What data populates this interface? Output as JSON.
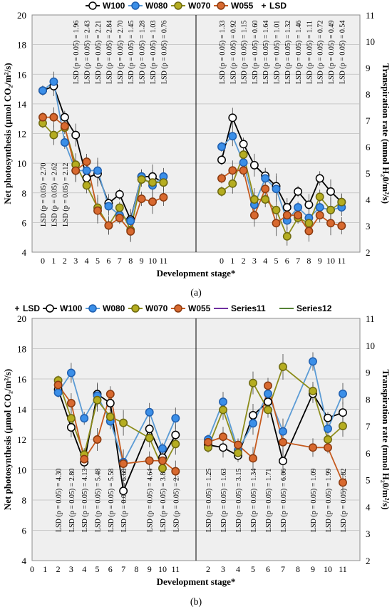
{
  "chart_data": [
    {
      "type": "line",
      "panel": "(a)",
      "legend": [
        "W100",
        "W080",
        "W070",
        "W055",
        "LSD"
      ],
      "xlabel": "Development stage*",
      "ylabel_left": "Net photosynthesis (µmol CO₂/m²/s)",
      "ylabel_right": "Transpiration rate (mmol H₂0/m²/s)",
      "ylim_left": [
        4,
        20
      ],
      "ylim_right": [
        2,
        11
      ],
      "yticks_left": [
        "4",
        "6",
        "8",
        "10",
        "12",
        "14",
        "16",
        "18",
        "20"
      ],
      "yticks_right": [
        "2",
        "3",
        "4",
        "5",
        "6",
        "7",
        "8",
        "9",
        "10",
        "11"
      ],
      "grid": true,
      "colors": {
        "W100": "#ffffff",
        "W080": "#3b8fe8",
        "W070": "#a8a21c",
        "W055": "#d8692f",
        "line_W100": "#000000",
        "line_W080": "#5b9bd5",
        "line_W070": "#8c8c1a",
        "line_W055": "#c55a1e"
      },
      "left": {
        "x": [
          "0",
          "1",
          "2",
          "3",
          "4",
          "5",
          "6",
          "7",
          "8",
          "9",
          "10",
          "11"
        ],
        "series": [
          {
            "name": "W100",
            "values": [
              14.9,
              15.2,
              13.1,
              11.9,
              9.0,
              9.3,
              7.3,
              7.9,
              6.2,
              9.1,
              9.1,
              8.7
            ]
          },
          {
            "name": "W080",
            "values": [
              14.9,
              15.5,
              11.4,
              9.5,
              9.5,
              9.5,
              7.1,
              6.5,
              6.1,
              9.1,
              8.5,
              9.1
            ]
          },
          {
            "name": "W070",
            "values": [
              12.7,
              11.9,
              12.4,
              9.9,
              8.5,
              7.0,
              5.8,
              7.0,
              5.5,
              8.9,
              8.7,
              8.7
            ]
          },
          {
            "name": "W055",
            "values": [
              13.1,
              13.1,
              12.5,
              9.5,
              10.1,
              6.8,
              5.8,
              6.3,
              5.4,
              7.6,
              7.4,
              7.7
            ]
          }
        ],
        "lsd": [
          "LSD (p = 0.05) = 2.70",
          "LSD (p = 0.05) = 2.62",
          "LSD (p = 0.05) = 2.12",
          "LSD (p = 0.05) = 1.96",
          "LSD (p = 0.05) = 2.43",
          "LSD (p = 0.05) = 2.21",
          "LSD (p = 0.05) = 2.84",
          "LSD (p = 0.05) = 2.70",
          "LSD (p = 0.05) = 1.45",
          "LSD (p = 0.05) = 1.28",
          "LSD (p = 0.05) = 1.03",
          "LSD (p = 0.05) = 0.76"
        ]
      },
      "right": {
        "x": [
          "0",
          "1",
          "2",
          "3",
          "4",
          "5",
          "6",
          "7",
          "8",
          "9",
          "10",
          "11"
        ],
        "series": [
          {
            "name": "W100",
            "values": [
              5.5,
              7.1,
              6.1,
              5.3,
              4.9,
              4.5,
              3.7,
              4.3,
              3.8,
              4.8,
              4.3,
              3.9
            ]
          },
          {
            "name": "W080",
            "values": [
              6.0,
              6.4,
              5.4,
              3.8,
              4.8,
              4.4,
              3.2,
              3.7,
              3.3,
              3.7,
              3.6,
              3.7
            ]
          },
          {
            "name": "W070",
            "values": [
              4.3,
              4.6,
              5.7,
              4.0,
              4.0,
              3.6,
              2.6,
              3.3,
              3.1,
              4.1,
              3.6,
              3.9
            ]
          },
          {
            "name": "W055",
            "values": [
              4.8,
              5.1,
              5.1,
              3.4,
              4.4,
              3.1,
              3.4,
              3.4,
              2.8,
              3.4,
              3.1,
              3.0
            ]
          }
        ],
        "lsd": [
          "LSD (p = 0.05) = 1.33",
          "LSD (p = 0.05) = 0.92",
          "LSD (p = 0.05) = 1.15",
          "LSD (p = 0.05) = 0.60",
          "LSD (p = 0.05) = 1.64",
          "LSD (p = 0.05) = 1.01",
          "LSD (p = 0.05) = 1.32",
          "LSD (p = 0.05) = 1.46",
          "LSD (p = 0.05) = 1.11",
          "LSD (p = 0.05) = 0.72",
          "LSD (p = 0.05) = 0.49",
          "LSD (p = 0.05) = 0.54"
        ]
      }
    },
    {
      "type": "line",
      "panel": "(b)",
      "legend": [
        "LSD",
        "W100",
        "W080",
        "W070",
        "W055",
        "Series11",
        "Series12"
      ],
      "xlabel": "Development stage*",
      "ylabel_left": "Net photosynthesis (µmol CO₂/m²/s)",
      "ylabel_right": "Transpiration rate (mmol H₂0/m²/s)",
      "ylim_left": [
        4,
        20
      ],
      "ylim_right": [
        2,
        11
      ],
      "yticks_left": [
        "4",
        "6",
        "8",
        "10",
        "12",
        "14",
        "16",
        "18",
        "20"
      ],
      "yticks_right": [
        "2",
        "3",
        "4",
        "5",
        "6",
        "7",
        "8",
        "9",
        "10",
        "11"
      ],
      "grid": true,
      "colors": {
        "Series11": "#7030a0",
        "Series12": "#548235"
      },
      "x_left_ticks": [
        "0",
        "1",
        "2",
        "3",
        "4",
        "5",
        "6",
        "7",
        "8",
        "9",
        "10",
        "11"
      ],
      "x_right_ticks": [
        "2",
        "3",
        "4",
        "5",
        "6",
        "7",
        "8",
        "9",
        "10",
        "11"
      ],
      "left": {
        "x": [
          "2",
          "3",
          "4",
          "5",
          "6",
          "7",
          "9",
          "10",
          "11"
        ],
        "series": [
          {
            "name": "W100",
            "values": [
              15.3,
              12.8,
              10.5,
              15.0,
              14.4,
              8.6,
              12.7,
              10.8,
              12.3
            ]
          },
          {
            "name": "W080",
            "values": [
              15.1,
              16.4,
              13.4,
              14.9,
              13.2,
              10.5,
              13.8,
              11.4,
              13.4
            ]
          },
          {
            "name": "W070",
            "values": [
              15.9,
              13.4,
              11.0,
              14.6,
              13.5,
              13.1,
              12.1,
              10.1,
              11.7
            ]
          },
          {
            "name": "W055",
            "values": [
              15.6,
              14.4,
              10.7,
              12.0,
              15.0,
              10.4,
              10.6,
              10.6,
              9.9
            ]
          }
        ],
        "lsd": [
          "LSD (p = 0.05) = 4.30",
          "LSD (p = 0.05) = 2.80",
          "LSD (p = 0.05) = 4.13",
          "LSD (p = 0.05) = 5.48",
          "LSD (p = 0.05) = 5.58",
          "LSD (p = 0.05) = 6.68",
          "LSD (p = 0.05) = 4.64",
          "LSD (p = 0.05) = 3.89",
          "LSD (p = 0.05) = 2.62"
        ]
      },
      "right": {
        "x": [
          "2",
          "3",
          "4",
          "5",
          "6",
          "7",
          "9",
          "10",
          "11"
        ],
        "series": [
          {
            "name": "W100",
            "values": [
              6.3,
              6.2,
              5.9,
              7.4,
              7.9,
              5.7,
              8.2,
              7.3,
              7.5
            ]
          },
          {
            "name": "W080",
            "values": [
              6.5,
              7.9,
              6.1,
              7.1,
              8.2,
              6.8,
              9.4,
              6.9,
              8.2
            ]
          },
          {
            "name": "W070",
            "values": [
              6.2,
              7.6,
              6.0,
              8.6,
              7.6,
              9.2,
              8.3,
              6.5,
              7.0
            ]
          },
          {
            "name": "W055",
            "values": [
              6.4,
              6.6,
              6.3,
              5.8,
              8.5,
              6.4,
              6.2,
              6.2,
              4.9
            ]
          }
        ],
        "lsd": [
          "LSD (p = 0.05) = 1.25",
          "LSD (p = 0.05) = 1.63",
          "LSD (p = 0.05) = 3.15",
          "LSD (p = 0.05) = 1.34",
          "LSD (p = 0.05) = 1.71",
          "LSD (p = 0.05) = 6.06",
          "LSD (p = 0.05) = 1.09",
          "LSD (p = 0.05) = 1.99",
          "LSD (p = 0.05) = 1.82"
        ]
      }
    }
  ],
  "captions": {
    "a": "(a)",
    "b": "(b)"
  }
}
